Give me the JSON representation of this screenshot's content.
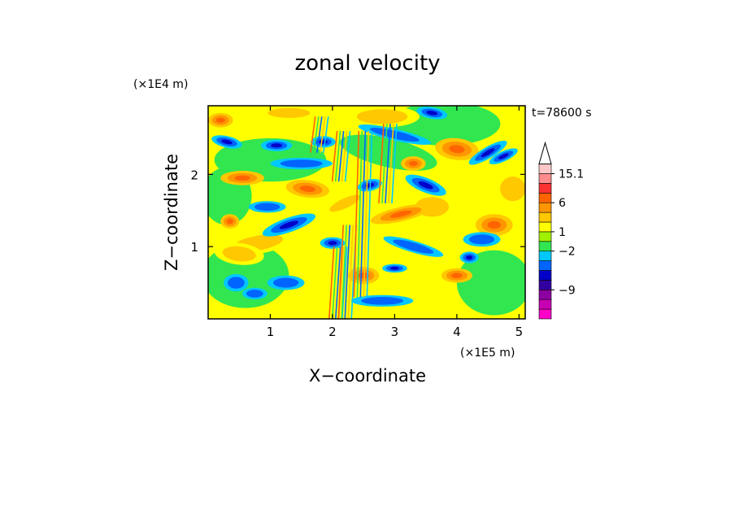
{
  "chart_data": {
    "type": "heatmap",
    "title": "zonal velocity",
    "xlabel": "X−coordinate",
    "ylabel": "Z−coordinate",
    "x_unit": "(×1E5 m)",
    "y_unit": "(×1E4 m)",
    "time_label": "t=78600 s",
    "xlim": [
      0,
      5.1
    ],
    "ylim": [
      0,
      2.95
    ],
    "x_ticks": [
      {
        "value": 1,
        "label": "1"
      },
      {
        "value": 2,
        "label": "2"
      },
      {
        "value": 3,
        "label": "3"
      },
      {
        "value": 4,
        "label": "4"
      },
      {
        "value": 5,
        "label": "5"
      }
    ],
    "y_ticks": [
      {
        "value": 1,
        "label": "1"
      },
      {
        "value": 2,
        "label": "2"
      }
    ],
    "colorbar": {
      "levels": [
        {
          "color": "#ff00c8"
        },
        {
          "color": "#c800b4"
        },
        {
          "color": "#8c00a0"
        },
        {
          "color": "#3200a0"
        },
        {
          "color": "#0000c8"
        },
        {
          "color": "#0064ff"
        },
        {
          "color": "#00c8ff"
        },
        {
          "color": "#32e650"
        },
        {
          "color": "#a0f000"
        },
        {
          "color": "#ffff00"
        },
        {
          "color": "#ffc800"
        },
        {
          "color": "#ff9600"
        },
        {
          "color": "#ff6400"
        },
        {
          "color": "#ff3232"
        },
        {
          "color": "#ff8c8c"
        },
        {
          "color": "#ffc8c8"
        }
      ],
      "labels": [
        {
          "text": "15.1",
          "at_level": 15
        },
        {
          "text": "6",
          "at_level": 12
        },
        {
          "text": "1",
          "at_level": 9
        },
        {
          "text": "−2",
          "at_level": 7
        },
        {
          "text": "−9",
          "at_level": 3
        }
      ]
    },
    "features": {
      "blue_streaks": [
        [
          0.3,
          2.45,
          0.25,
          0.08,
          -0.2
        ],
        [
          1.1,
          2.4,
          0.25,
          0.08,
          0.0
        ],
        [
          1.85,
          2.45,
          0.2,
          0.08,
          0.0
        ],
        [
          1.3,
          1.3,
          0.45,
          0.1,
          0.3
        ],
        [
          2.0,
          1.05,
          0.2,
          0.08,
          0.0
        ],
        [
          2.6,
          1.85,
          0.2,
          0.08,
          0.2
        ],
        [
          3.5,
          1.85,
          0.35,
          0.1,
          -0.35
        ],
        [
          3.0,
          0.7,
          0.2,
          0.06,
          0.0
        ],
        [
          3.6,
          2.85,
          0.25,
          0.08,
          -0.15
        ],
        [
          4.5,
          2.3,
          0.35,
          0.08,
          0.5
        ],
        [
          4.75,
          2.25,
          0.25,
          0.07,
          0.4
        ],
        [
          4.2,
          0.85,
          0.15,
          0.08,
          0.0
        ]
      ],
      "cyan_streaks": [
        [
          0.45,
          0.5,
          0.2,
          0.12,
          0.0
        ],
        [
          0.75,
          0.35,
          0.2,
          0.08,
          0.0
        ],
        [
          1.5,
          2.15,
          0.5,
          0.08,
          0.0
        ],
        [
          1.25,
          0.5,
          0.3,
          0.1,
          0.0
        ],
        [
          3.0,
          2.55,
          0.6,
          0.08,
          -0.2
        ],
        [
          3.3,
          1.0,
          0.5,
          0.08,
          -0.25
        ],
        [
          2.8,
          0.25,
          0.5,
          0.08,
          0.0
        ],
        [
          4.4,
          1.1,
          0.3,
          0.1,
          0.0
        ],
        [
          0.95,
          1.55,
          0.3,
          0.08,
          0.0
        ]
      ],
      "orange_streaks": [
        [
          0.2,
          2.75,
          0.2,
          0.1,
          0.0
        ],
        [
          0.55,
          1.95,
          0.35,
          0.1,
          0.0
        ],
        [
          1.6,
          1.8,
          0.35,
          0.12,
          -0.1
        ],
        [
          4.0,
          2.35,
          0.35,
          0.15,
          -0.1
        ],
        [
          4.6,
          1.3,
          0.3,
          0.15,
          0.0
        ],
        [
          3.1,
          1.45,
          0.5,
          0.1,
          0.2
        ],
        [
          2.5,
          0.6,
          0.25,
          0.12,
          0.0
        ],
        [
          4.0,
          0.6,
          0.25,
          0.1,
          0.0
        ],
        [
          3.3,
          2.15,
          0.2,
          0.1,
          0.0
        ],
        [
          0.35,
          1.35,
          0.15,
          0.1,
          0.0
        ]
      ],
      "yellow_bands": [
        [
          0.8,
          1.05,
          0.6,
          0.15,
          0.15
        ],
        [
          2.8,
          2.8,
          0.6,
          0.15,
          0.0
        ],
        [
          1.3,
          2.85,
          0.5,
          0.1,
          0.0
        ],
        [
          0.5,
          0.9,
          0.4,
          0.15,
          -0.1
        ],
        [
          3.6,
          1.55,
          0.4,
          0.2,
          0.0
        ],
        [
          4.9,
          1.8,
          0.3,
          0.25,
          0.0
        ],
        [
          2.2,
          1.6,
          0.4,
          0.1,
          0.4
        ]
      ],
      "vertical_streaks": [
        [
          2.05,
          0.0,
          1.0
        ],
        [
          2.2,
          0.0,
          1.3
        ],
        [
          2.45,
          0.3,
          2.6
        ],
        [
          2.1,
          1.9,
          2.6
        ],
        [
          1.75,
          2.3,
          2.8
        ],
        [
          2.85,
          1.6,
          2.7
        ]
      ]
    }
  }
}
